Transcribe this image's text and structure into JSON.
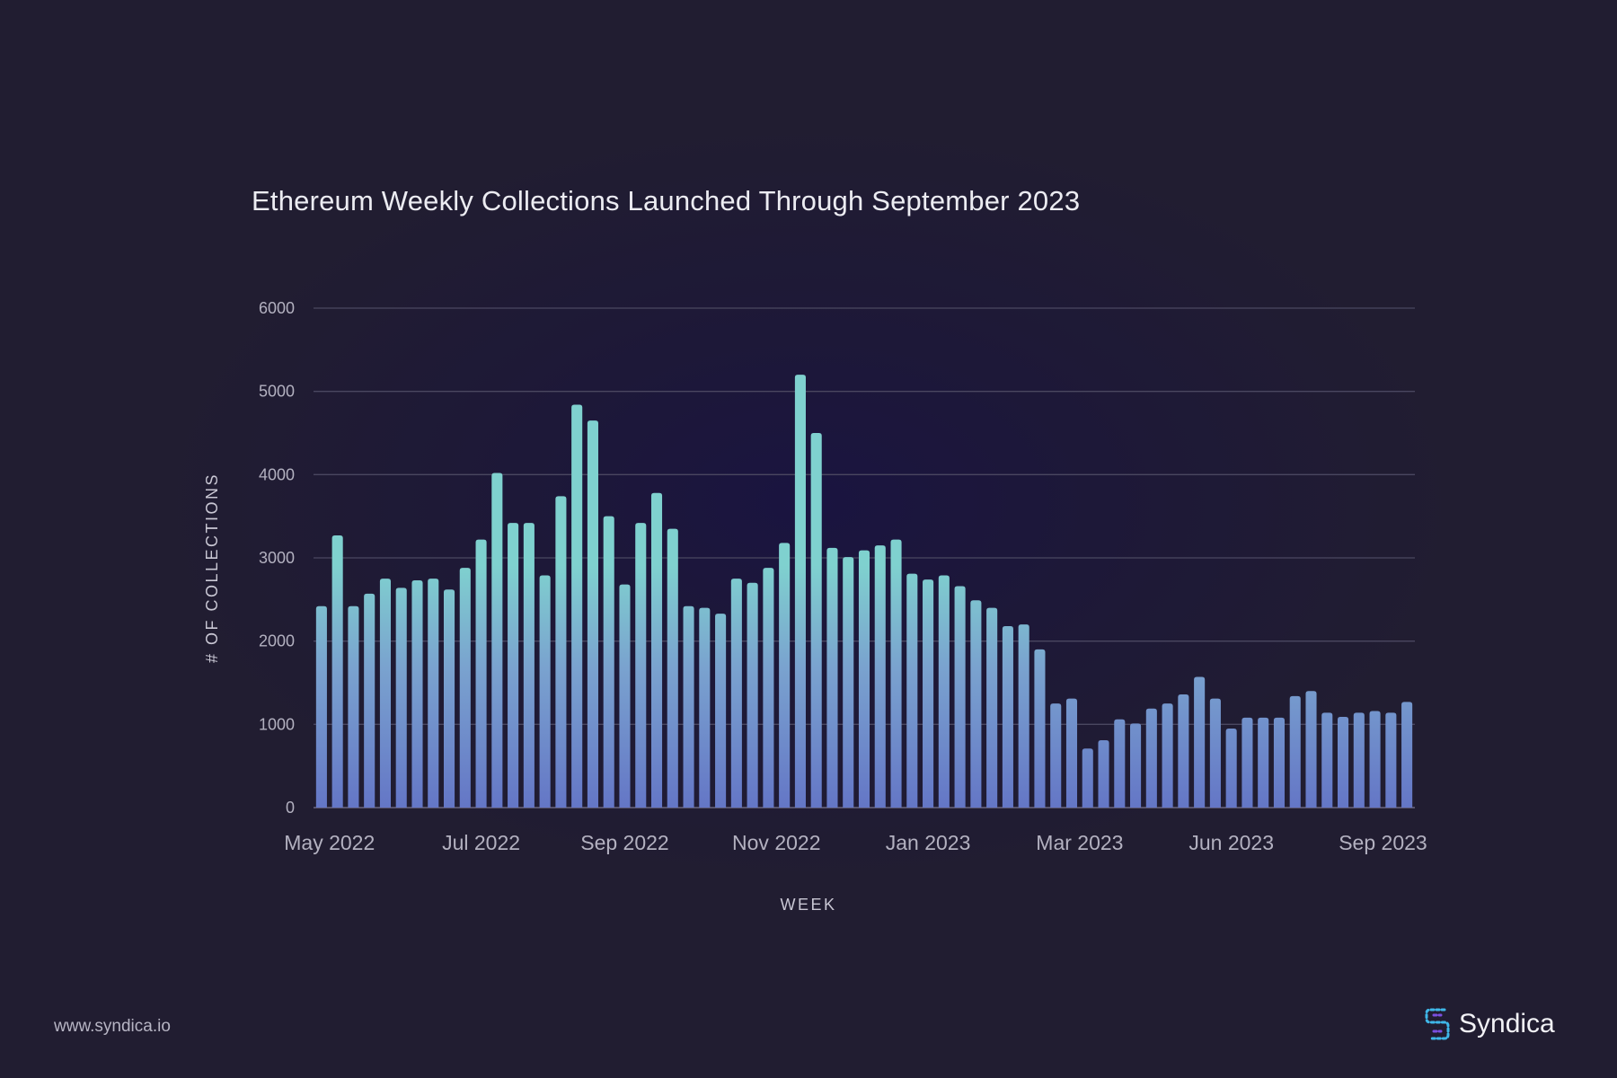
{
  "title": "Ethereum Weekly Collections Launched Through September 2023",
  "footer": {
    "url": "www.syndica.io"
  },
  "brand": {
    "name": "Syndica",
    "logo_icon": "syndica-logo-icon"
  },
  "colors": {
    "background": "#211d31",
    "bar_top": "#7fd1cf",
    "bar_bottom": "#6476c6",
    "grid": "#4a4760",
    "axis_text": "#b3b1c0"
  },
  "chart_data": {
    "type": "bar",
    "title": "Ethereum Weekly Collections Launched Through September 2023",
    "xlabel": "WEEK",
    "ylabel": "# OF COLLECTIONS",
    "ylim": [
      0,
      6000
    ],
    "yticks": [
      0,
      1000,
      2000,
      3000,
      4000,
      5000,
      6000
    ],
    "grid": true,
    "xtick_labels": [
      "May 2022",
      "Jul 2022",
      "Sep 2022",
      "Nov 2022",
      "Jan 2023",
      "Mar 2023",
      "Jun 2023",
      "Sep 2023"
    ],
    "xtick_bar_index": [
      0.5,
      10,
      19,
      28.5,
      38,
      47.5,
      57,
      66.5
    ],
    "values": [
      2420,
      3270,
      2420,
      2570,
      2750,
      2640,
      2730,
      2750,
      2620,
      2880,
      3220,
      4020,
      3420,
      3420,
      2790,
      3740,
      4840,
      4650,
      3500,
      2680,
      3420,
      3780,
      3350,
      2420,
      2400,
      2330,
      2750,
      2700,
      2880,
      3180,
      5200,
      4500,
      3120,
      3010,
      3090,
      3150,
      3220,
      2810,
      2740,
      2790,
      2660,
      2490,
      2400,
      2180,
      2200,
      1900,
      1250,
      1310,
      710,
      810,
      1060,
      1010,
      1190,
      1250,
      1360,
      1570,
      1310,
      950,
      1080,
      1080,
      1080,
      1340,
      1400,
      1140,
      1090,
      1140,
      1160,
      1140,
      1270
    ]
  }
}
